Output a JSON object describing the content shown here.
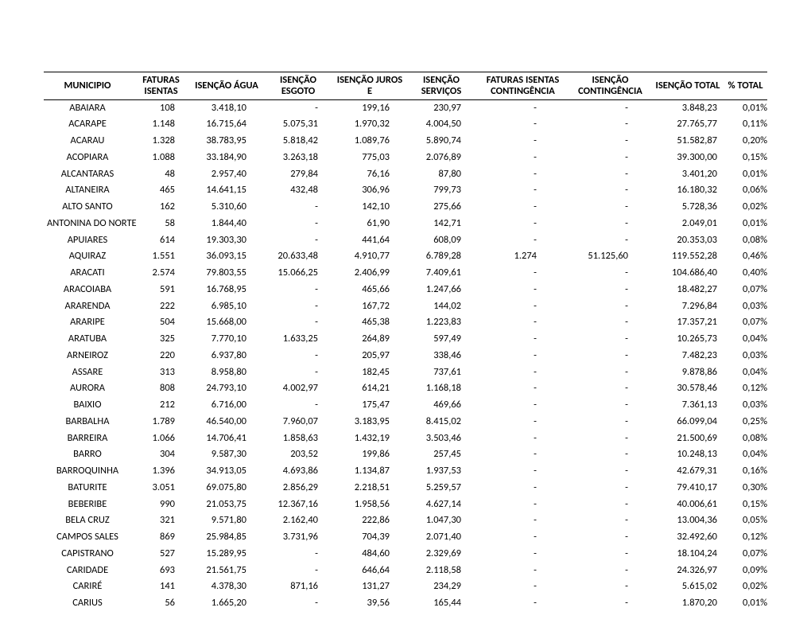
{
  "table": {
    "columns": [
      "MUNICIPIO",
      "FATURAS ISENTAS",
      "ISENÇÃO ÁGUA",
      "ISENÇÃO ESGOTO",
      "ISENÇÃO JUROS E",
      "ISENÇÃO SERVIÇOS",
      "FATURAS ISENTAS CONTINGÊNCIA",
      "ISENÇÃO CONTINGÊNCIA",
      "ISENÇÃO TOTAL",
      "% TOTAL"
    ],
    "rows": [
      {
        "mun": "ABAIARA",
        "fat": "108",
        "agua": "3.418,10",
        "esg": "-",
        "jur": "199,16",
        "serv": "230,97",
        "fcont": "-",
        "icont": "-",
        "tot": "3.848,23",
        "pct": "0,01%"
      },
      {
        "mun": "ACARAPE",
        "fat": "1.148",
        "agua": "16.715,64",
        "esg": "5.075,31",
        "jur": "1.970,32",
        "serv": "4.004,50",
        "fcont": "-",
        "icont": "-",
        "tot": "27.765,77",
        "pct": "0,11%"
      },
      {
        "mun": "ACARAU",
        "fat": "1.328",
        "agua": "38.783,95",
        "esg": "5.818,42",
        "jur": "1.089,76",
        "serv": "5.890,74",
        "fcont": "-",
        "icont": "-",
        "tot": "51.582,87",
        "pct": "0,20%"
      },
      {
        "mun": "ACOPIARA",
        "fat": "1.088",
        "agua": "33.184,90",
        "esg": "3.263,18",
        "jur": "775,03",
        "serv": "2.076,89",
        "fcont": "-",
        "icont": "-",
        "tot": "39.300,00",
        "pct": "0,15%"
      },
      {
        "mun": "ALCANTARAS",
        "fat": "48",
        "agua": "2.957,40",
        "esg": "279,84",
        "jur": "76,16",
        "serv": "87,80",
        "fcont": "-",
        "icont": "-",
        "tot": "3.401,20",
        "pct": "0,01%"
      },
      {
        "mun": "ALTANEIRA",
        "fat": "465",
        "agua": "14.641,15",
        "esg": "432,48",
        "jur": "306,96",
        "serv": "799,73",
        "fcont": "-",
        "icont": "-",
        "tot": "16.180,32",
        "pct": "0,06%"
      },
      {
        "mun": "ALTO SANTO",
        "fat": "162",
        "agua": "5.310,60",
        "esg": "-",
        "jur": "142,10",
        "serv": "275,66",
        "fcont": "-",
        "icont": "-",
        "tot": "5.728,36",
        "pct": "0,02%"
      },
      {
        "mun": "ANTONINA DO NORTE",
        "fat": "58",
        "agua": "1.844,40",
        "esg": "-",
        "jur": "61,90",
        "serv": "142,71",
        "fcont": "-",
        "icont": "-",
        "tot": "2.049,01",
        "pct": "0,01%"
      },
      {
        "mun": "APUIARES",
        "fat": "614",
        "agua": "19.303,30",
        "esg": "-",
        "jur": "441,64",
        "serv": "608,09",
        "fcont": "-",
        "icont": "-",
        "tot": "20.353,03",
        "pct": "0,08%"
      },
      {
        "mun": "AQUIRAZ",
        "fat": "1.551",
        "agua": "36.093,15",
        "esg": "20.633,48",
        "jur": "4.910,77",
        "serv": "6.789,28",
        "fcont": "1.274",
        "icont": "51.125,60",
        "tot": "119.552,28",
        "pct": "0,46%"
      },
      {
        "mun": "ARACATI",
        "fat": "2.574",
        "agua": "79.803,55",
        "esg": "15.066,25",
        "jur": "2.406,99",
        "serv": "7.409,61",
        "fcont": "-",
        "icont": "-",
        "tot": "104.686,40",
        "pct": "0,40%"
      },
      {
        "mun": "ARACOIABA",
        "fat": "591",
        "agua": "16.768,95",
        "esg": "-",
        "jur": "465,66",
        "serv": "1.247,66",
        "fcont": "-",
        "icont": "-",
        "tot": "18.482,27",
        "pct": "0,07%"
      },
      {
        "mun": "ARARENDA",
        "fat": "222",
        "agua": "6.985,10",
        "esg": "-",
        "jur": "167,72",
        "serv": "144,02",
        "fcont": "-",
        "icont": "-",
        "tot": "7.296,84",
        "pct": "0,03%"
      },
      {
        "mun": "ARARIPE",
        "fat": "504",
        "agua": "15.668,00",
        "esg": "-",
        "jur": "465,38",
        "serv": "1.223,83",
        "fcont": "-",
        "icont": "-",
        "tot": "17.357,21",
        "pct": "0,07%"
      },
      {
        "mun": "ARATUBA",
        "fat": "325",
        "agua": "7.770,10",
        "esg": "1.633,25",
        "jur": "264,89",
        "serv": "597,49",
        "fcont": "-",
        "icont": "-",
        "tot": "10.265,73",
        "pct": "0,04%"
      },
      {
        "mun": "ARNEIROZ",
        "fat": "220",
        "agua": "6.937,80",
        "esg": "-",
        "jur": "205,97",
        "serv": "338,46",
        "fcont": "-",
        "icont": "-",
        "tot": "7.482,23",
        "pct": "0,03%"
      },
      {
        "mun": "ASSARE",
        "fat": "313",
        "agua": "8.958,80",
        "esg": "-",
        "jur": "182,45",
        "serv": "737,61",
        "fcont": "-",
        "icont": "-",
        "tot": "9.878,86",
        "pct": "0,04%"
      },
      {
        "mun": "AURORA",
        "fat": "808",
        "agua": "24.793,10",
        "esg": "4.002,97",
        "jur": "614,21",
        "serv": "1.168,18",
        "fcont": "-",
        "icont": "-",
        "tot": "30.578,46",
        "pct": "0,12%"
      },
      {
        "mun": "BAIXIO",
        "fat": "212",
        "agua": "6.716,00",
        "esg": "-",
        "jur": "175,47",
        "serv": "469,66",
        "fcont": "-",
        "icont": "-",
        "tot": "7.361,13",
        "pct": "0,03%"
      },
      {
        "mun": "BARBALHA",
        "fat": "1.789",
        "agua": "46.540,00",
        "esg": "7.960,07",
        "jur": "3.183,95",
        "serv": "8.415,02",
        "fcont": "-",
        "icont": "-",
        "tot": "66.099,04",
        "pct": "0,25%"
      },
      {
        "mun": "BARREIRA",
        "fat": "1.066",
        "agua": "14.706,41",
        "esg": "1.858,63",
        "jur": "1.432,19",
        "serv": "3.503,46",
        "fcont": "-",
        "icont": "-",
        "tot": "21.500,69",
        "pct": "0,08%"
      },
      {
        "mun": "BARRO",
        "fat": "304",
        "agua": "9.587,30",
        "esg": "203,52",
        "jur": "199,86",
        "serv": "257,45",
        "fcont": "-",
        "icont": "-",
        "tot": "10.248,13",
        "pct": "0,04%"
      },
      {
        "mun": "BARROQUINHA",
        "fat": "1.396",
        "agua": "34.913,05",
        "esg": "4.693,86",
        "jur": "1.134,87",
        "serv": "1.937,53",
        "fcont": "-",
        "icont": "-",
        "tot": "42.679,31",
        "pct": "0,16%"
      },
      {
        "mun": "BATURITE",
        "fat": "3.051",
        "agua": "69.075,80",
        "esg": "2.856,29",
        "jur": "2.218,51",
        "serv": "5.259,57",
        "fcont": "-",
        "icont": "-",
        "tot": "79.410,17",
        "pct": "0,30%"
      },
      {
        "mun": "BEBERIBE",
        "fat": "990",
        "agua": "21.053,75",
        "esg": "12.367,16",
        "jur": "1.958,56",
        "serv": "4.627,14",
        "fcont": "-",
        "icont": "-",
        "tot": "40.006,61",
        "pct": "0,15%"
      },
      {
        "mun": "BELA CRUZ",
        "fat": "321",
        "agua": "9.571,80",
        "esg": "2.162,40",
        "jur": "222,86",
        "serv": "1.047,30",
        "fcont": "-",
        "icont": "-",
        "tot": "13.004,36",
        "pct": "0,05%"
      },
      {
        "mun": "CAMPOS SALES",
        "fat": "869",
        "agua": "25.984,85",
        "esg": "3.731,96",
        "jur": "704,39",
        "serv": "2.071,40",
        "fcont": "-",
        "icont": "-",
        "tot": "32.492,60",
        "pct": "0,12%"
      },
      {
        "mun": "CAPISTRANO",
        "fat": "527",
        "agua": "15.289,95",
        "esg": "-",
        "jur": "484,60",
        "serv": "2.329,69",
        "fcont": "-",
        "icont": "-",
        "tot": "18.104,24",
        "pct": "0,07%"
      },
      {
        "mun": "CARIDADE",
        "fat": "693",
        "agua": "21.561,75",
        "esg": "-",
        "jur": "646,64",
        "serv": "2.118,58",
        "fcont": "-",
        "icont": "-",
        "tot": "24.326,97",
        "pct": "0,09%"
      },
      {
        "mun": "CARIRÉ",
        "fat": "141",
        "agua": "4.378,30",
        "esg": "871,16",
        "jur": "131,27",
        "serv": "234,29",
        "fcont": "-",
        "icont": "-",
        "tot": "5.615,02",
        "pct": "0,02%"
      },
      {
        "mun": "CARIUS",
        "fat": "56",
        "agua": "1.665,20",
        "esg": "-",
        "jur": "39,56",
        "serv": "165,44",
        "fcont": "-",
        "icont": "-",
        "tot": "1.870,20",
        "pct": "0,01%"
      }
    ]
  }
}
